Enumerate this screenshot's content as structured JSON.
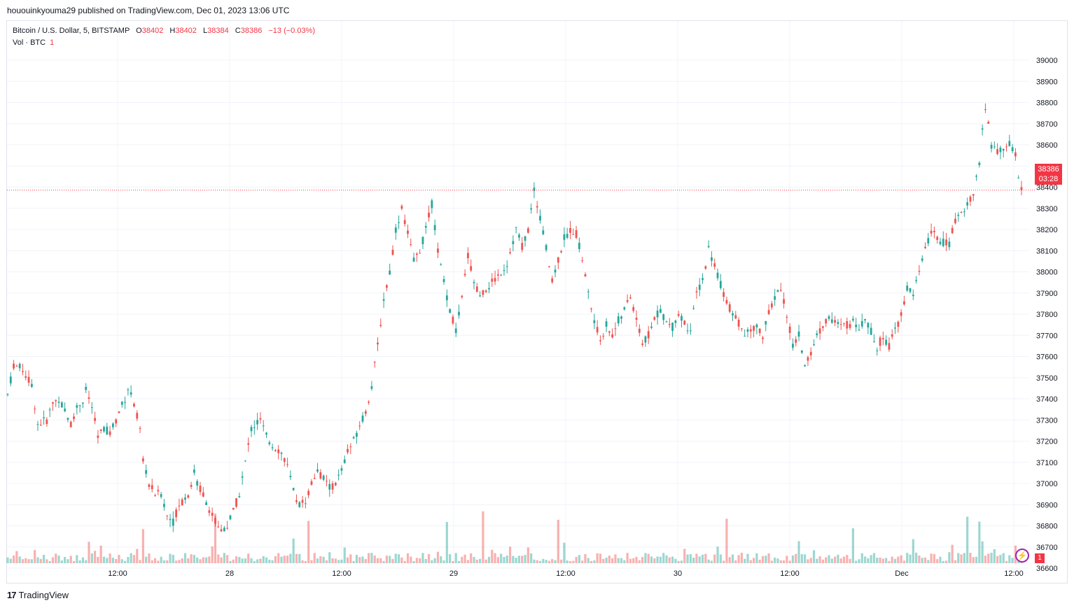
{
  "header": {
    "publish_line": "hououinkyouma29 published on TradingView.com, Dec 01, 2023 13:06 UTC"
  },
  "legend": {
    "symbol": "Bitcoin / U.S. Dollar, 5, BITSTAMP",
    "o_label": "O",
    "o_value": "38402",
    "h_label": "H",
    "h_value": "38402",
    "l_label": "L",
    "l_value": "38384",
    "c_label": "C",
    "c_value": "38386",
    "change": "−13 (−0.03%)",
    "vol_label": "Vol · BTC",
    "vol_value": "1"
  },
  "price_tag": {
    "price": "38386",
    "countdown": "03:28"
  },
  "volume_tag": "1",
  "footer": {
    "logo_mark": "17",
    "brand": "TradingView"
  },
  "colors": {
    "up": "#26a69a",
    "down": "#ef5350",
    "last_price": "#f23645",
    "grid": "#f0f3fa"
  },
  "chart_data": {
    "type": "candlestick",
    "instrument": "Bitcoin / U.S. Dollar",
    "timeframe": "5",
    "exchange": "BITSTAMP",
    "x_tick_labels": [
      "12:00",
      "28",
      "12:00",
      "29",
      "12:00",
      "30",
      "12:00",
      "Dec",
      "12:00"
    ],
    "y_ticks": [
      36600,
      36700,
      36800,
      36900,
      37000,
      37100,
      37200,
      37300,
      37400,
      37500,
      37600,
      37700,
      37800,
      37900,
      38000,
      38100,
      38200,
      38300,
      38400,
      38500,
      38600,
      38700,
      38800,
      38900,
      39000
    ],
    "ylim": [
      36530,
      39050
    ],
    "last_price": 38386,
    "path": [
      [
        0,
        37420
      ],
      [
        2,
        37560
      ],
      [
        5,
        37540
      ],
      [
        8,
        37460
      ],
      [
        10,
        37280
      ],
      [
        13,
        37300
      ],
      [
        15,
        37380
      ],
      [
        17,
        37400
      ],
      [
        19,
        37340
      ],
      [
        21,
        37280
      ],
      [
        23,
        37360
      ],
      [
        25,
        37390
      ],
      [
        26,
        37440
      ],
      [
        28,
        37360
      ],
      [
        30,
        37220
      ],
      [
        32,
        37260
      ],
      [
        34,
        37240
      ],
      [
        36,
        37300
      ],
      [
        37,
        37340
      ],
      [
        39,
        37400
      ],
      [
        40,
        37450
      ],
      [
        42,
        37380
      ],
      [
        44,
        37250
      ],
      [
        45,
        37100
      ],
      [
        47,
        37000
      ],
      [
        49,
        36950
      ],
      [
        51,
        36950
      ],
      [
        53,
        36850
      ],
      [
        55,
        36820
      ],
      [
        57,
        36900
      ],
      [
        60,
        36950
      ],
      [
        62,
        37050
      ],
      [
        63,
        37000
      ],
      [
        65,
        36950
      ],
      [
        67,
        36880
      ],
      [
        69,
        36820
      ],
      [
        71,
        36780
      ],
      [
        73,
        36800
      ],
      [
        75,
        36870
      ],
      [
        77,
        36950
      ],
      [
        79,
        37100
      ],
      [
        81,
        37260
      ],
      [
        84,
        37300
      ],
      [
        86,
        37220
      ],
      [
        88,
        37180
      ],
      [
        90,
        37160
      ],
      [
        92,
        37120
      ],
      [
        93,
        37080
      ],
      [
        95,
        36960
      ],
      [
        97,
        36900
      ],
      [
        99,
        36920
      ],
      [
        101,
        37000
      ],
      [
        103,
        37060
      ],
      [
        105,
        37020
      ],
      [
        107,
        36980
      ],
      [
        109,
        37000
      ],
      [
        111,
        37060
      ],
      [
        113,
        37150
      ],
      [
        115,
        37200
      ],
      [
        117,
        37280
      ],
      [
        119,
        37340
      ],
      [
        121,
        37460
      ],
      [
        123,
        37650
      ],
      [
        125,
        37870
      ],
      [
        127,
        38000
      ],
      [
        129,
        38200
      ],
      [
        131,
        38300
      ],
      [
        133,
        38180
      ],
      [
        135,
        38050
      ],
      [
        137,
        38100
      ],
      [
        139,
        38200
      ],
      [
        141,
        38320
      ],
      [
        143,
        38100
      ],
      [
        145,
        37950
      ],
      [
        147,
        37820
      ],
      [
        149,
        37720
      ],
      [
        151,
        37870
      ],
      [
        153,
        38080
      ],
      [
        155,
        37950
      ],
      [
        157,
        37880
      ],
      [
        159,
        37920
      ],
      [
        161,
        37950
      ],
      [
        163,
        37980
      ],
      [
        166,
        38040
      ],
      [
        169,
        38200
      ],
      [
        171,
        38120
      ],
      [
        173,
        38200
      ],
      [
        175,
        38380
      ],
      [
        177,
        38260
      ],
      [
        179,
        38110
      ],
      [
        181,
        37950
      ],
      [
        183,
        38060
      ],
      [
        185,
        38160
      ],
      [
        187,
        38200
      ],
      [
        189,
        38180
      ],
      [
        191,
        38060
      ],
      [
        193,
        37900
      ],
      [
        195,
        37760
      ],
      [
        197,
        37680
      ],
      [
        199,
        37750
      ],
      [
        201,
        37700
      ],
      [
        203,
        37770
      ],
      [
        205,
        37820
      ],
      [
        207,
        37880
      ],
      [
        209,
        37780
      ],
      [
        211,
        37660
      ],
      [
        213,
        37700
      ],
      [
        215,
        37780
      ],
      [
        217,
        37820
      ],
      [
        219,
        37760
      ],
      [
        221,
        37740
      ],
      [
        223,
        37800
      ],
      [
        225,
        37760
      ],
      [
        227,
        37720
      ],
      [
        229,
        37900
      ],
      [
        231,
        37960
      ],
      [
        233,
        38110
      ],
      [
        235,
        38030
      ],
      [
        237,
        37940
      ],
      [
        239,
        37860
      ],
      [
        241,
        37800
      ],
      [
        243,
        37760
      ],
      [
        245,
        37700
      ],
      [
        247,
        37720
      ],
      [
        249,
        37740
      ],
      [
        251,
        37700
      ],
      [
        253,
        37800
      ],
      [
        255,
        37880
      ],
      [
        257,
        37920
      ],
      [
        259,
        37800
      ],
      [
        261,
        37650
      ],
      [
        263,
        37700
      ],
      [
        265,
        37560
      ],
      [
        267,
        37620
      ],
      [
        269,
        37700
      ],
      [
        271,
        37750
      ],
      [
        273,
        37790
      ],
      [
        275,
        37760
      ],
      [
        277,
        37740
      ],
      [
        279,
        37750
      ],
      [
        281,
        37760
      ],
      [
        283,
        37740
      ],
      [
        285,
        37780
      ],
      [
        287,
        37720
      ],
      [
        289,
        37640
      ],
      [
        291,
        37700
      ],
      [
        293,
        37650
      ],
      [
        295,
        37720
      ],
      [
        297,
        37800
      ],
      [
        299,
        37920
      ],
      [
        301,
        37900
      ],
      [
        303,
        38000
      ],
      [
        305,
        38100
      ],
      [
        307,
        38200
      ],
      [
        309,
        38150
      ],
      [
        311,
        38140
      ],
      [
        313,
        38130
      ],
      [
        315,
        38250
      ],
      [
        317,
        38280
      ],
      [
        319,
        38320
      ],
      [
        321,
        38380
      ],
      [
        323,
        38500
      ],
      [
        324,
        38680
      ],
      [
        325,
        38780
      ],
      [
        327,
        38600
      ],
      [
        329,
        38560
      ],
      [
        331,
        38580
      ],
      [
        333,
        38600
      ],
      [
        335,
        38560
      ],
      [
        336,
        38440
      ],
      [
        337,
        38386
      ]
    ],
    "volume_scale_btc": [
      0,
      1,
      2,
      3,
      4
    ],
    "volume_spikes_candle_index": [
      45,
      69,
      100,
      146,
      158,
      183,
      239,
      281,
      319,
      323
    ]
  }
}
